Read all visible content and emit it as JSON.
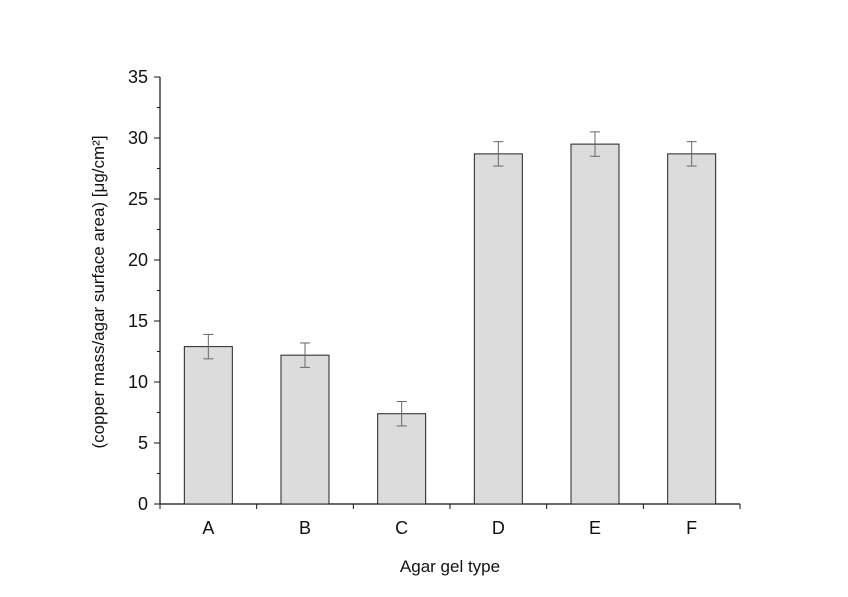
{
  "chart_data": {
    "type": "bar",
    "categories": [
      "A",
      "B",
      "C",
      "D",
      "E",
      "F"
    ],
    "values": [
      12.9,
      12.2,
      7.4,
      28.7,
      29.5,
      28.7
    ],
    "errors": [
      1.0,
      1.0,
      1.0,
      1.0,
      1.0,
      1.0
    ],
    "xlabel": "Agar gel type",
    "ylabel": "(copper mass/agar surface area) [μg/cm²]",
    "ylim": [
      0,
      35
    ],
    "yticks": [
      0,
      5,
      10,
      15,
      20,
      25,
      30,
      35
    ],
    "bar_color": "#dcdcdc",
    "edge_color": "#222222",
    "error_color": "#666666",
    "grid": false,
    "legend": "none"
  }
}
